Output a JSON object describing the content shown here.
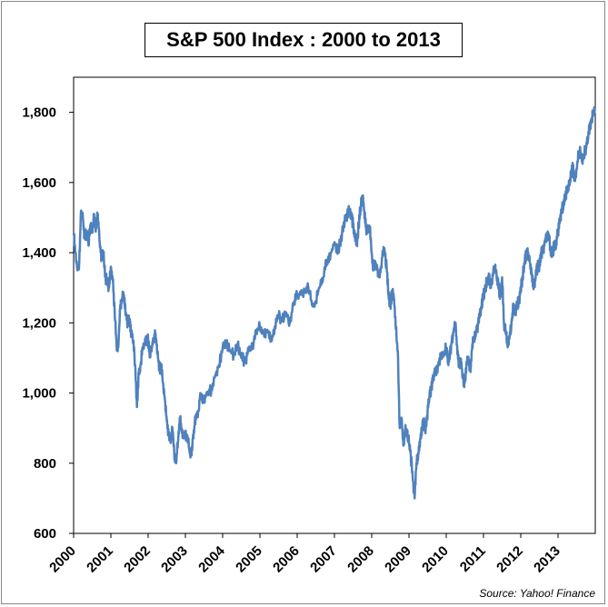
{
  "chart_data": {
    "type": "line",
    "title": "S&P 500 Index : 2000 to 2013",
    "source": "Source: Yahoo! Finance",
    "xlabel": "",
    "ylabel": "",
    "ylim": [
      600,
      1900
    ],
    "xlim": [
      2000,
      2014
    ],
    "y_ticks": [
      {
        "value": 600,
        "label": "600"
      },
      {
        "value": 800,
        "label": "800"
      },
      {
        "value": 1000,
        "label": "1,000"
      },
      {
        "value": 1200,
        "label": "1,200"
      },
      {
        "value": 1400,
        "label": "1,400"
      },
      {
        "value": 1600,
        "label": "1,600"
      },
      {
        "value": 1800,
        "label": "1,800"
      }
    ],
    "x_ticks": [
      {
        "value": 2000,
        "label": "2000"
      },
      {
        "value": 2001,
        "label": "2001"
      },
      {
        "value": 2002,
        "label": "2002"
      },
      {
        "value": 2003,
        "label": "2003"
      },
      {
        "value": 2004,
        "label": "2004"
      },
      {
        "value": 2005,
        "label": "2005"
      },
      {
        "value": 2006,
        "label": "2006"
      },
      {
        "value": 2007,
        "label": "2007"
      },
      {
        "value": 2008,
        "label": "2008"
      },
      {
        "value": 2009,
        "label": "2009"
      },
      {
        "value": 2010,
        "label": "2010"
      },
      {
        "value": 2011,
        "label": "2011"
      },
      {
        "value": 2012,
        "label": "2012"
      },
      {
        "value": 2013,
        "label": "2013"
      }
    ],
    "grid": false,
    "legend": "none",
    "line_color": "#4F81BD",
    "series": [
      {
        "x": [
          2000.0,
          2000.05,
          2000.1,
          2000.15,
          2000.2,
          2000.25,
          2000.3,
          2000.35,
          2000.4,
          2000.45,
          2000.5,
          2000.55,
          2000.6,
          2000.65,
          2000.7,
          2000.75,
          2000.8,
          2000.85,
          2000.9,
          2000.95,
          2001.0,
          2001.05,
          2001.1,
          2001.15,
          2001.2,
          2001.25,
          2001.3,
          2001.35,
          2001.4,
          2001.45,
          2001.5,
          2001.55,
          2001.6,
          2001.65,
          2001.7,
          2001.75,
          2001.8,
          2001.85,
          2001.9,
          2001.95,
          2002.0,
          2002.05,
          2002.1,
          2002.15,
          2002.2,
          2002.25,
          2002.3,
          2002.35,
          2002.4,
          2002.45,
          2002.5,
          2002.55,
          2002.6,
          2002.65,
          2002.7,
          2002.75,
          2002.8,
          2002.85,
          2002.9,
          2002.95,
          2003.0,
          2003.05,
          2003.1,
          2003.15,
          2003.2,
          2003.25,
          2003.3,
          2003.35,
          2003.4,
          2003.5,
          2003.6,
          2003.7,
          2003.8,
          2003.9,
          2004.0,
          2004.1,
          2004.2,
          2004.3,
          2004.4,
          2004.5,
          2004.6,
          2004.7,
          2004.8,
          2004.9,
          2005.0,
          2005.1,
          2005.2,
          2005.3,
          2005.4,
          2005.5,
          2005.6,
          2005.7,
          2005.8,
          2005.9,
          2006.0,
          2006.1,
          2006.2,
          2006.3,
          2006.4,
          2006.5,
          2006.6,
          2006.7,
          2006.8,
          2006.9,
          2007.0,
          2007.1,
          2007.15,
          2007.2,
          2007.3,
          2007.4,
          2007.45,
          2007.5,
          2007.55,
          2007.6,
          2007.65,
          2007.7,
          2007.75,
          2007.8,
          2007.85,
          2007.9,
          2007.95,
          2008.0,
          2008.05,
          2008.1,
          2008.15,
          2008.2,
          2008.25,
          2008.3,
          2008.35,
          2008.4,
          2008.45,
          2008.5,
          2008.55,
          2008.6,
          2008.65,
          2008.7,
          2008.75,
          2008.8,
          2008.85,
          2008.9,
          2008.95,
          2009.0,
          2009.05,
          2009.1,
          2009.15,
          2009.2,
          2009.25,
          2009.3,
          2009.35,
          2009.4,
          2009.45,
          2009.5,
          2009.55,
          2009.6,
          2009.65,
          2009.7,
          2009.75,
          2009.8,
          2009.85,
          2009.9,
          2009.95,
          2010.0,
          2010.05,
          2010.1,
          2010.15,
          2010.2,
          2010.25,
          2010.3,
          2010.35,
          2010.4,
          2010.45,
          2010.5,
          2010.55,
          2010.6,
          2010.65,
          2010.7,
          2010.75,
          2010.8,
          2010.85,
          2010.9,
          2010.95,
          2011.0,
          2011.05,
          2011.1,
          2011.15,
          2011.2,
          2011.25,
          2011.3,
          2011.35,
          2011.4,
          2011.45,
          2011.5,
          2011.55,
          2011.6,
          2011.65,
          2011.7,
          2011.75,
          2011.8,
          2011.85,
          2011.9,
          2011.95,
          2012.0,
          2012.05,
          2012.1,
          2012.15,
          2012.2,
          2012.25,
          2012.3,
          2012.35,
          2012.4,
          2012.45,
          2012.5,
          2012.55,
          2012.6,
          2012.65,
          2012.7,
          2012.75,
          2012.8,
          2012.85,
          2012.9,
          2012.95,
          2013.0,
          2013.05,
          2013.1,
          2013.15,
          2013.2,
          2013.25,
          2013.3,
          2013.35,
          2013.4,
          2013.45,
          2013.5,
          2013.55,
          2013.6,
          2013.65,
          2013.7,
          2013.75,
          2013.8,
          2013.85,
          2013.9,
          2013.95,
          2013.99
        ],
        "y": [
          1455,
          1400,
          1350,
          1370,
          1520,
          1495,
          1440,
          1460,
          1420,
          1480,
          1460,
          1510,
          1470,
          1510,
          1430,
          1380,
          1400,
          1330,
          1320,
          1300,
          1360,
          1320,
          1240,
          1140,
          1130,
          1250,
          1270,
          1280,
          1230,
          1200,
          1210,
          1170,
          1150,
          1080,
          960,
          1060,
          1080,
          1130,
          1140,
          1150,
          1150,
          1110,
          1130,
          1150,
          1170,
          1120,
          1070,
          1080,
          1030,
          980,
          920,
          880,
          860,
          900,
          830,
          800,
          860,
          930,
          900,
          880,
          880,
          880,
          840,
          820,
          870,
          910,
          940,
          950,
          1000,
          980,
          1000,
          1010,
          1050,
          1080,
          1130,
          1140,
          1120,
          1110,
          1140,
          1100,
          1090,
          1120,
          1130,
          1180,
          1190,
          1170,
          1180,
          1150,
          1190,
          1220,
          1210,
          1230,
          1200,
          1250,
          1280,
          1280,
          1290,
          1300,
          1250,
          1260,
          1300,
          1330,
          1380,
          1400,
          1430,
          1400,
          1430,
          1450,
          1500,
          1520,
          1510,
          1480,
          1450,
          1420,
          1480,
          1530,
          1560,
          1520,
          1470,
          1460,
          1470,
          1400,
          1350,
          1370,
          1350,
          1330,
          1360,
          1400,
          1400,
          1360,
          1280,
          1250,
          1290,
          1270,
          1180,
          1120,
          900,
          930,
          850,
          900,
          880,
          860,
          820,
          760,
          700,
          800,
          830,
          870,
          900,
          920,
          900,
          950,
          990,
          1010,
          1050,
          1060,
          1060,
          1090,
          1100,
          1110,
          1115,
          1130,
          1090,
          1110,
          1150,
          1180,
          1200,
          1110,
          1080,
          1090,
          1040,
          1030,
          1090,
          1100,
          1060,
          1140,
          1160,
          1180,
          1190,
          1220,
          1250,
          1280,
          1300,
          1320,
          1330,
          1300,
          1340,
          1360,
          1340,
          1300,
          1280,
          1330,
          1200,
          1170,
          1130,
          1160,
          1200,
          1250,
          1230,
          1250,
          1260,
          1300,
          1330,
          1370,
          1400,
          1400,
          1370,
          1340,
          1300,
          1330,
          1360,
          1360,
          1400,
          1410,
          1430,
          1440,
          1450,
          1410,
          1400,
          1420,
          1430,
          1460,
          1500,
          1520,
          1540,
          1560,
          1580,
          1590,
          1630,
          1640,
          1610,
          1640,
          1680,
          1690,
          1660,
          1680,
          1700,
          1720,
          1760,
          1780,
          1800,
          1810
        ]
      }
    ]
  }
}
